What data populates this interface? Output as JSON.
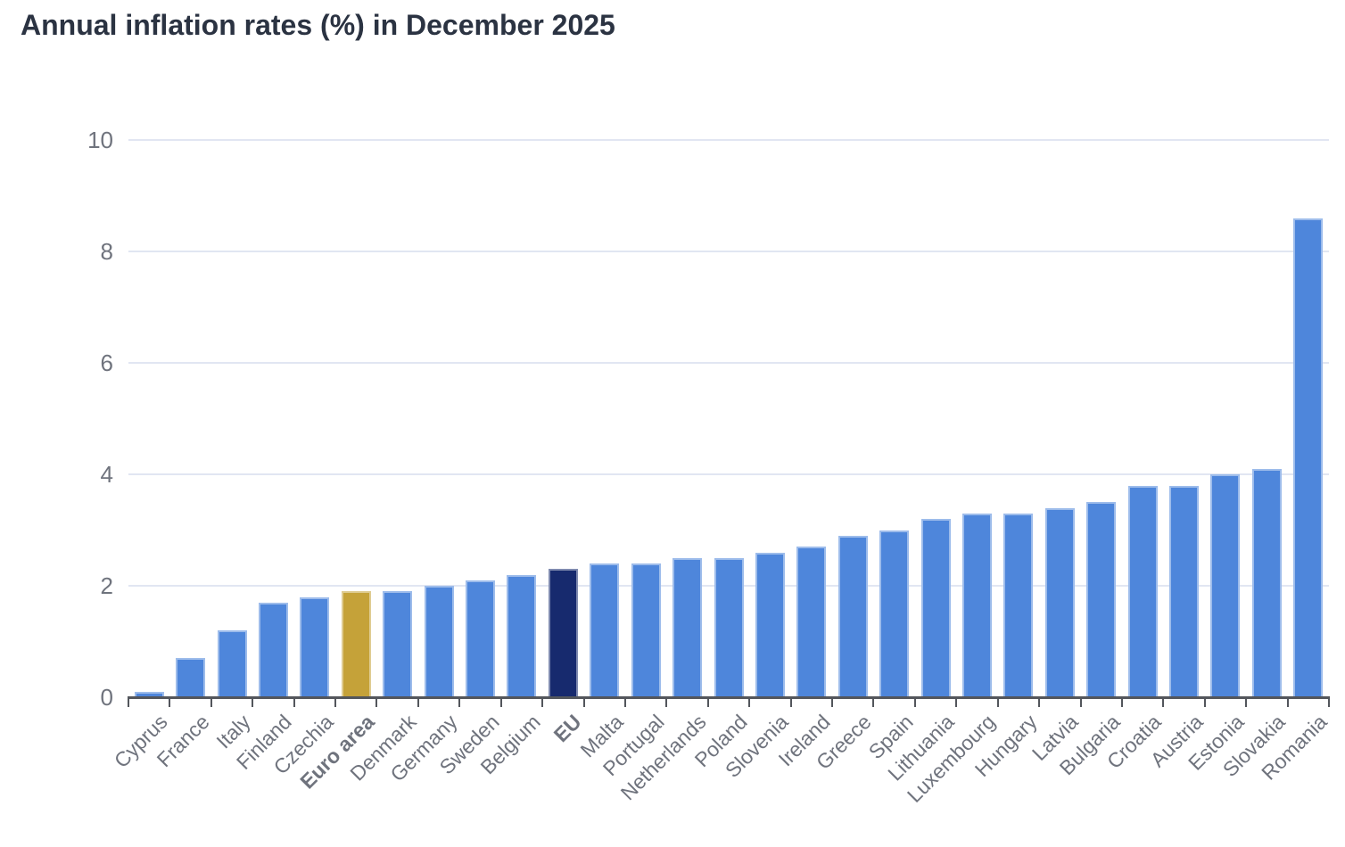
{
  "title": "Annual inflation rates (%) in December 2025",
  "colors": {
    "background": "#FFFFFF",
    "title": "#2B3342",
    "bar_default": "#4E86DB",
    "bar_euro_area": "#C5A239",
    "bar_eu": "#172A6E",
    "axis_line": "#53565C",
    "tick_label": "#6F737D",
    "gridline": "#E1E6F2"
  },
  "chart_data": {
    "type": "bar",
    "title": "Annual inflation rates (%) in December 2025",
    "xlabel": "",
    "ylabel": "",
    "ylim": [
      0,
      10
    ],
    "yticks": [
      0,
      2,
      4,
      6,
      8,
      10
    ],
    "grid": true,
    "legend": false,
    "categories": [
      "Cyprus",
      "France",
      "Italy",
      "Finland",
      "Czechia",
      "Euro area",
      "Denmark",
      "Germany",
      "Sweden",
      "Belgium",
      "EU",
      "Malta",
      "Portugal",
      "Netherlands",
      "Poland",
      "Slovenia",
      "Ireland",
      "Greece",
      "Spain",
      "Lithuania",
      "Luxembourg",
      "Hungary",
      "Latvia",
      "Bulgaria",
      "Croatia",
      "Austria",
      "Estonia",
      "Slovakia",
      "Romania"
    ],
    "values": [
      0.1,
      0.7,
      1.2,
      1.7,
      1.8,
      1.9,
      1.9,
      2.0,
      2.1,
      2.2,
      2.3,
      2.4,
      2.4,
      2.5,
      2.5,
      2.6,
      2.7,
      2.9,
      3.0,
      3.2,
      3.3,
      3.3,
      3.4,
      3.5,
      3.8,
      3.8,
      4.0,
      4.1,
      8.6
    ],
    "bold_categories": [
      "Euro area",
      "EU"
    ],
    "highlighted_bars": [
      {
        "category": "Euro area",
        "color": "#C5A239"
      },
      {
        "category": "EU",
        "color": "#172A6E"
      }
    ]
  }
}
